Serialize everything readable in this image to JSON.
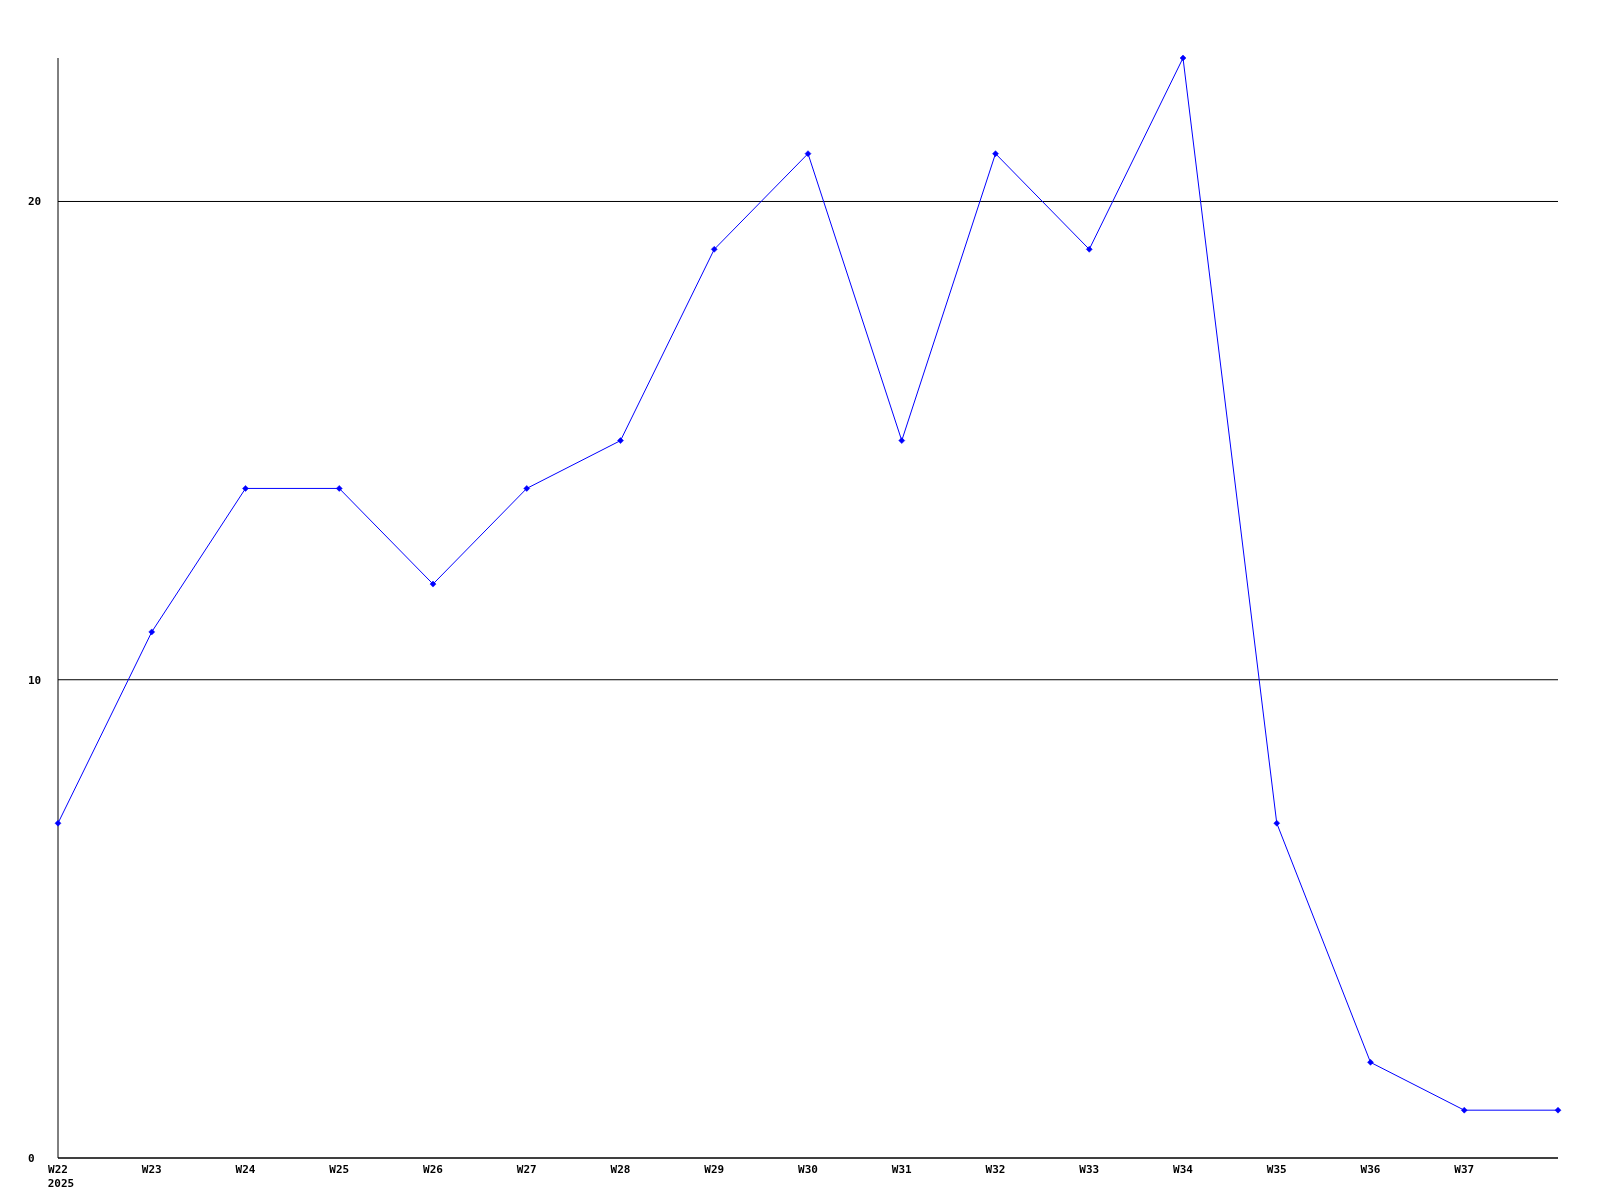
{
  "chart_data": {
    "type": "line",
    "categories": [
      "W22\n2025",
      "W23",
      "W24",
      "W25",
      "W26",
      "W27",
      "W28",
      "W29",
      "W30",
      "W31",
      "W32",
      "W33",
      "W34",
      "W35",
      "W36",
      "W37",
      null
    ],
    "series": [
      {
        "color": "#0000ff",
        "values": [
          7,
          11,
          14,
          14,
          12,
          14,
          15,
          19,
          21,
          15,
          21,
          19,
          23,
          7,
          2,
          1,
          1
        ]
      }
    ],
    "ylim": [
      0,
      23
    ],
    "yticks": [
      0,
      10,
      20
    ],
    "grid": "y",
    "marker": "diamond",
    "line_style": "solid"
  }
}
